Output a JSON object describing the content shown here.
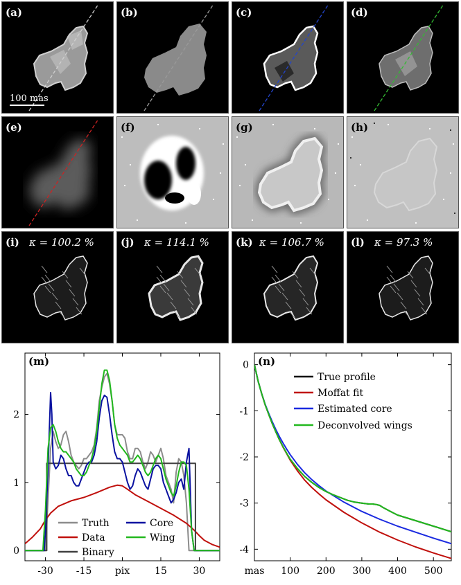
{
  "figure": {
    "panels": [
      {
        "label": "(a)",
        "kappa": ""
      },
      {
        "label": "(b)",
        "kappa": ""
      },
      {
        "label": "(c)",
        "kappa": ""
      },
      {
        "label": "(d)",
        "kappa": ""
      },
      {
        "label": "(e)",
        "kappa": ""
      },
      {
        "label": "(f)",
        "kappa": ""
      },
      {
        "label": "(g)",
        "kappa": ""
      },
      {
        "label": "(h)",
        "kappa": ""
      },
      {
        "label": "(i)",
        "kappa": "κ = 100.2 %"
      },
      {
        "label": "(j)",
        "kappa": "κ = 114.1 %"
      },
      {
        "label": "(k)",
        "kappa": "κ = 106.7 %"
      },
      {
        "label": "(l)",
        "kappa": "κ = 97.3 %"
      }
    ],
    "scalebar_label": "100 mas",
    "line_colors": {
      "a": "#cfcfcf",
      "b": "#9a9a9a",
      "c": "#2244cc",
      "d": "#33bb33",
      "e": "#cc2222"
    }
  },
  "chart_data": [
    {
      "panel": "(m)",
      "type": "line",
      "title": "(m)",
      "xlabel": "pix",
      "ylabel": "",
      "xlim": [
        -38,
        38
      ],
      "ylim": [
        -0.15,
        2.9
      ],
      "xticks": [
        -30,
        -15,
        0,
        15,
        30
      ],
      "xtick_labels": [
        "-30",
        "-15",
        "pix",
        "15",
        "30"
      ],
      "yticks": [
        0,
        1,
        2
      ],
      "ytick_labels": [
        "0",
        "1",
        "2"
      ],
      "grid": false,
      "legend_position": "bottom",
      "series": [
        {
          "name": "Truth",
          "color": "#8c8c8c",
          "x": [
            -38,
            -30,
            -28,
            -27,
            -26,
            -25,
            -24,
            -23,
            -22,
            -21,
            -20,
            -19,
            -18,
            -17,
            -16,
            -15,
            -14,
            -13,
            -12,
            -11,
            -10,
            -9,
            -8,
            -7,
            -6,
            -5,
            -4,
            -3,
            -2,
            -1,
            0,
            1,
            2,
            3,
            4,
            5,
            6,
            7,
            8,
            9,
            10,
            11,
            12,
            13,
            14,
            15,
            16,
            17,
            18,
            19,
            20,
            21,
            22,
            23,
            24,
            25,
            26,
            27,
            28,
            29,
            30,
            38
          ],
          "y": [
            0,
            0,
            1.5,
            1.75,
            1.6,
            1.5,
            1.55,
            1.7,
            1.75,
            1.6,
            1.4,
            1.3,
            1.25,
            1.2,
            1.25,
            1.35,
            1.35,
            1.4,
            1.45,
            1.55,
            1.8,
            2.2,
            2.4,
            2.55,
            2.6,
            2.45,
            2.2,
            1.85,
            1.7,
            1.7,
            1.7,
            1.65,
            1.45,
            1.35,
            1.35,
            1.5,
            1.5,
            1.45,
            1.3,
            1.2,
            1.3,
            1.45,
            1.4,
            1.3,
            1.4,
            1.5,
            1.35,
            1.1,
            1.0,
            0.9,
            0.7,
            1.15,
            1.35,
            1.3,
            1.1,
            0.7,
            0,
            0,
            0,
            0,
            0,
            0
          ]
        },
        {
          "name": "Data",
          "color": "#c0100c",
          "x": [
            -38,
            -35,
            -32,
            -30,
            -28,
            -25,
            -20,
            -15,
            -10,
            -5,
            -2,
            0,
            2,
            5,
            10,
            15,
            20,
            25,
            28,
            30,
            32,
            35,
            38
          ],
          "y": [
            0.1,
            0.2,
            0.32,
            0.45,
            0.55,
            0.65,
            0.73,
            0.78,
            0.85,
            0.93,
            0.96,
            0.95,
            0.9,
            0.82,
            0.72,
            0.62,
            0.52,
            0.4,
            0.3,
            0.22,
            0.15,
            0.09,
            0.05
          ]
        },
        {
          "name": "Binary",
          "color": "#404040",
          "x": [
            -38,
            -29.5,
            -29.5,
            28.5,
            28.5,
            38
          ],
          "y": [
            0,
            0,
            1.28,
            1.28,
            0,
            0
          ]
        },
        {
          "name": "Core",
          "color": "#0a12a0",
          "x": [
            -38,
            -30.5,
            -30,
            -29,
            -28,
            -27.5,
            -27,
            -26,
            -25,
            -24,
            -23,
            -22,
            -21,
            -20,
            -19,
            -18,
            -17,
            -16,
            -15,
            -14,
            -13,
            -12,
            -11,
            -10,
            -9,
            -8,
            -7,
            -6,
            -5,
            -4,
            -3,
            -2,
            -1,
            0,
            1,
            2,
            3,
            4,
            5,
            6,
            7,
            8,
            9,
            10,
            11,
            12,
            13,
            14,
            15,
            16,
            17,
            18,
            19,
            20,
            21,
            22,
            23,
            24,
            25,
            26,
            27,
            28,
            29,
            30,
            38
          ],
          "y": [
            0,
            0,
            0.3,
            1.2,
            2.32,
            2.0,
            1.3,
            1.2,
            1.25,
            1.4,
            1.35,
            1.2,
            1.1,
            1.1,
            1.0,
            0.95,
            0.95,
            1.05,
            1.15,
            1.25,
            1.3,
            1.3,
            1.4,
            1.6,
            1.95,
            2.2,
            2.28,
            2.25,
            2.0,
            1.7,
            1.45,
            1.35,
            1.35,
            1.3,
            1.15,
            1.0,
            0.9,
            0.95,
            1.1,
            1.2,
            1.15,
            1.05,
            0.95,
            0.9,
            1.05,
            1.2,
            1.25,
            1.25,
            1.2,
            1.0,
            0.9,
            0.8,
            0.7,
            0.75,
            0.85,
            1.0,
            1.05,
            0.9,
            1.3,
            1.5,
            0.3,
            0,
            0,
            0,
            0
          ]
        },
        {
          "name": "Wing",
          "color": "#22b81e",
          "x": [
            -38,
            -31,
            -30,
            -29,
            -28,
            -27,
            -26,
            -25,
            -24,
            -23,
            -22,
            -21,
            -20,
            -19,
            -18,
            -17,
            -16,
            -15,
            -14,
            -13,
            -12,
            -11,
            -10,
            -9,
            -8,
            -7,
            -6,
            -5,
            -4,
            -3,
            -2,
            -1,
            0,
            1,
            2,
            3,
            4,
            5,
            6,
            7,
            8,
            9,
            10,
            11,
            12,
            13,
            14,
            15,
            16,
            17,
            18,
            19,
            20,
            21,
            22,
            23,
            24,
            25,
            26,
            27,
            28,
            29,
            30,
            38
          ],
          "y": [
            0,
            0,
            0.6,
            1.5,
            1.8,
            1.85,
            1.75,
            1.6,
            1.5,
            1.45,
            1.45,
            1.4,
            1.35,
            1.3,
            1.2,
            1.15,
            1.1,
            1.1,
            1.15,
            1.25,
            1.35,
            1.5,
            1.75,
            2.1,
            2.45,
            2.65,
            2.65,
            2.5,
            2.2,
            1.85,
            1.65,
            1.55,
            1.5,
            1.45,
            1.4,
            1.3,
            1.3,
            1.35,
            1.4,
            1.35,
            1.25,
            1.15,
            1.1,
            1.15,
            1.25,
            1.35,
            1.4,
            1.35,
            1.2,
            1.05,
            0.95,
            0.85,
            0.8,
            0.95,
            1.15,
            1.3,
            1.3,
            1.25,
            0.9,
            0.3,
            0,
            0,
            0,
            0
          ]
        }
      ]
    },
    {
      "panel": "(n)",
      "type": "line",
      "title": "(n)",
      "xlabel": "mas",
      "ylabel": "",
      "xlim": [
        0,
        550
      ],
      "ylim": [
        -4.25,
        0.25
      ],
      "xticks": [
        0,
        100,
        200,
        300,
        400,
        500
      ],
      "xtick_labels": [
        "mas",
        "100",
        "200",
        "300",
        "400",
        "500"
      ],
      "yticks": [
        0,
        -1,
        -2,
        -3,
        -4
      ],
      "ytick_labels": [
        "0",
        "-1",
        "-2",
        "-3",
        "-4"
      ],
      "grid": false,
      "legend_position": "top-right",
      "series": [
        {
          "name": "True profile",
          "color": "#000000",
          "x": [
            0,
            10,
            20,
            30,
            40,
            50,
            60,
            70,
            80,
            90,
            100,
            120,
            140,
            160,
            180,
            200,
            220,
            240,
            260,
            280,
            300,
            320,
            330,
            340,
            350,
            360,
            380,
            400,
            450,
            500,
            550
          ],
          "y": [
            0,
            -0.35,
            -0.62,
            -0.87,
            -1.08,
            -1.28,
            -1.46,
            -1.63,
            -1.78,
            -1.92,
            -2.05,
            -2.25,
            -2.42,
            -2.55,
            -2.66,
            -2.75,
            -2.82,
            -2.88,
            -2.94,
            -2.98,
            -3.0,
            -3.02,
            -3.02,
            -3.03,
            -3.05,
            -3.1,
            -3.18,
            -3.26,
            -3.38,
            -3.5,
            -3.62
          ]
        },
        {
          "name": "Moffat fit",
          "color": "#c0100c",
          "x": [
            0,
            10,
            20,
            30,
            40,
            50,
            60,
            70,
            80,
            90,
            100,
            120,
            140,
            160,
            180,
            200,
            250,
            300,
            350,
            400,
            450,
            500,
            550
          ],
          "y": [
            0,
            -0.35,
            -0.62,
            -0.87,
            -1.08,
            -1.28,
            -1.46,
            -1.63,
            -1.79,
            -1.93,
            -2.07,
            -2.3,
            -2.5,
            -2.66,
            -2.8,
            -2.93,
            -3.2,
            -3.43,
            -3.63,
            -3.8,
            -3.95,
            -4.08,
            -4.2
          ]
        },
        {
          "name": "Estimated core",
          "color": "#1a2ae0",
          "x": [
            0,
            10,
            20,
            30,
            40,
            50,
            60,
            70,
            80,
            90,
            100,
            120,
            140,
            160,
            180,
            200,
            250,
            300,
            350,
            400,
            450,
            500,
            550
          ],
          "y": [
            0,
            -0.35,
            -0.62,
            -0.86,
            -1.06,
            -1.24,
            -1.41,
            -1.56,
            -1.7,
            -1.83,
            -1.95,
            -2.16,
            -2.34,
            -2.49,
            -2.62,
            -2.74,
            -2.98,
            -3.18,
            -3.35,
            -3.5,
            -3.63,
            -3.76,
            -3.88
          ]
        },
        {
          "name": "Deconvolved wings",
          "color": "#22b81e",
          "x": [
            0,
            10,
            20,
            30,
            40,
            50,
            60,
            70,
            80,
            90,
            100,
            120,
            140,
            160,
            180,
            200,
            220,
            240,
            260,
            280,
            300,
            320,
            330,
            340,
            350,
            360,
            380,
            400,
            450,
            500,
            550
          ],
          "y": [
            0,
            -0.35,
            -0.62,
            -0.87,
            -1.08,
            -1.28,
            -1.46,
            -1.63,
            -1.78,
            -1.92,
            -2.05,
            -2.25,
            -2.42,
            -2.55,
            -2.66,
            -2.75,
            -2.82,
            -2.88,
            -2.94,
            -2.98,
            -3.0,
            -3.02,
            -3.02,
            -3.03,
            -3.05,
            -3.1,
            -3.18,
            -3.26,
            -3.38,
            -3.5,
            -3.62
          ]
        }
      ]
    }
  ]
}
